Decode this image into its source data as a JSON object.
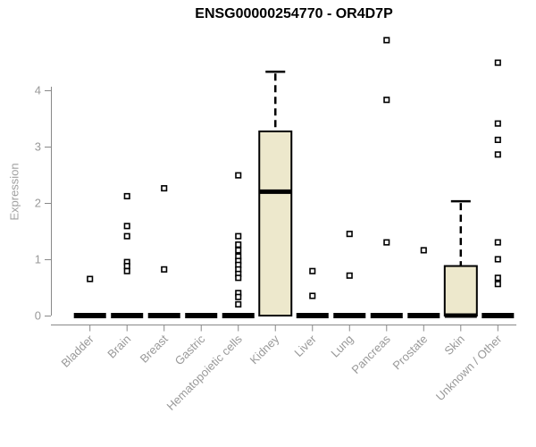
{
  "chart_data": {
    "type": "boxplot",
    "title": "ENSG00000254770 - OR4D7P",
    "ylabel": "Expression",
    "yticks": [
      0,
      1,
      2,
      3,
      4
    ],
    "ylim": [
      0,
      4.95
    ],
    "grid": false,
    "legend": "none",
    "background": "#ffffff",
    "colors": {
      "box_fill": "#ede8cc",
      "box_border": "#000000",
      "median": "#000000",
      "whisker": "#000000",
      "outlier": "#000000",
      "axis_line": "#888888",
      "tick_label": "#999999",
      "axis_title": "#a0a0a0",
      "title": "#000000"
    },
    "categories": [
      "Bladder",
      "Brain",
      "Breast",
      "Gastric",
      "Hematopoietic cells",
      "Kidney",
      "Liver",
      "Lung",
      "Pancreas",
      "Prostate",
      "Skin",
      "Unknown / Other"
    ],
    "series": [
      {
        "name": "Bladder",
        "q1": 0,
        "median": 0,
        "q3": 0,
        "whisker_low": 0,
        "whisker_high": 0,
        "outliers": [
          0.65
        ]
      },
      {
        "name": "Brain",
        "q1": 0,
        "median": 0,
        "q3": 0,
        "whisker_low": 0,
        "whisker_high": 0,
        "outliers": [
          2.12,
          1.59,
          1.41,
          0.95,
          0.88,
          0.79
        ]
      },
      {
        "name": "Breast",
        "q1": 0,
        "median": 0,
        "q3": 0,
        "whisker_low": 0,
        "whisker_high": 0,
        "outliers": [
          2.26,
          0.82
        ]
      },
      {
        "name": "Gastric",
        "q1": 0,
        "median": 0,
        "q3": 0,
        "whisker_low": 0,
        "whisker_high": 0,
        "outliers": []
      },
      {
        "name": "Hematopoietic cells",
        "q1": 0,
        "median": 0,
        "q3": 0,
        "whisker_low": 0,
        "whisker_high": 0,
        "outliers": [
          2.49,
          1.41,
          1.26,
          1.16,
          1.05,
          0.97,
          0.9,
          0.82,
          0.74,
          0.67,
          0.4,
          0.33,
          0.2
        ]
      },
      {
        "name": "Kidney",
        "q1": 0,
        "median": 2.2,
        "q3": 3.27,
        "whisker_low": 0,
        "whisker_high": 4.33,
        "outliers": []
      },
      {
        "name": "Liver",
        "q1": 0,
        "median": 0,
        "q3": 0,
        "whisker_low": 0,
        "whisker_high": 0,
        "outliers": [
          0.79,
          0.35
        ]
      },
      {
        "name": "Lung",
        "q1": 0,
        "median": 0,
        "q3": 0,
        "whisker_low": 0,
        "whisker_high": 0,
        "outliers": [
          1.45,
          0.71
        ]
      },
      {
        "name": "Pancreas",
        "q1": 0,
        "median": 0,
        "q3": 0,
        "whisker_low": 0,
        "whisker_high": 0,
        "outliers": [
          4.89,
          3.83,
          1.3
        ]
      },
      {
        "name": "Prostate",
        "q1": 0,
        "median": 0,
        "q3": 0,
        "whisker_low": 0,
        "whisker_high": 0,
        "outliers": [
          1.16
        ]
      },
      {
        "name": "Skin",
        "q1": 0,
        "median": 0,
        "q3": 0.88,
        "whisker_low": 0,
        "whisker_high": 2.03,
        "outliers": []
      },
      {
        "name": "Unknown / Other",
        "q1": 0,
        "median": 0,
        "q3": 0,
        "whisker_low": 0,
        "whisker_high": 0,
        "outliers": [
          4.49,
          3.41,
          3.12,
          2.86,
          1.3,
          1.0,
          0.67,
          0.56
        ]
      }
    ]
  }
}
